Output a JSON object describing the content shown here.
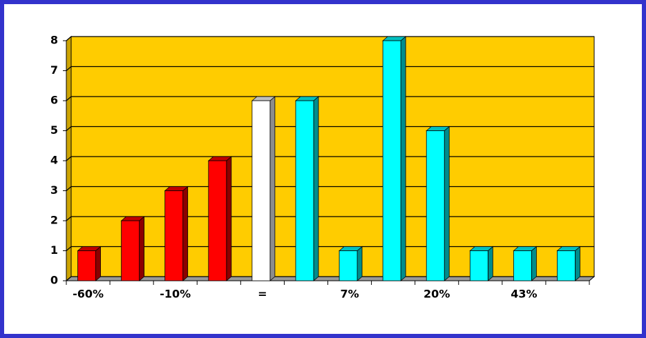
{
  "chart_data": {
    "type": "bar3d",
    "categories": [
      "-60%",
      null,
      "-10%",
      null,
      "=",
      null,
      "7%",
      null,
      "20%",
      null,
      "43%",
      null
    ],
    "values": [
      1,
      2,
      3,
      4,
      6,
      6,
      1,
      8,
      5,
      1,
      1,
      1
    ],
    "colors": [
      "#ff0000",
      "#ff0000",
      "#ff0000",
      "#ff0000",
      "#ffffff",
      "#00ffff",
      "#00ffff",
      "#00ffff",
      "#00ffff",
      "#00ffff",
      "#00ffff",
      "#00ffff"
    ],
    "ylim": [
      0,
      8
    ],
    "yticks": [
      0,
      1,
      2,
      3,
      4,
      5,
      6,
      7,
      8
    ],
    "grid": true,
    "wall_color": "#ffcc00"
  }
}
